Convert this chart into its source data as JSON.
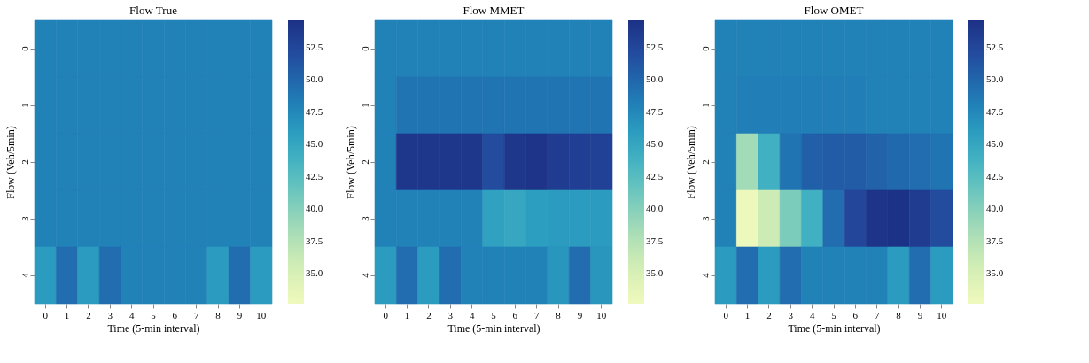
{
  "chart_data": [
    {
      "type": "heatmap",
      "title": "Flow True",
      "xlabel": "Time (5-min interval)",
      "ylabel": "Flow (Veh/5min)",
      "categories": [
        "0",
        "1",
        "2",
        "3",
        "4",
        "5",
        "6",
        "7",
        "8",
        "9",
        "10"
      ],
      "y_categories": [
        "0",
        "1",
        "2",
        "3",
        "4"
      ],
      "cells": [
        [
          48,
          48,
          48,
          48,
          48,
          48,
          48,
          48,
          48,
          48,
          48
        ],
        [
          48,
          48,
          48,
          48,
          48,
          48,
          48,
          48,
          48,
          48,
          48
        ],
        [
          48,
          48,
          48,
          48,
          48,
          48,
          48,
          48,
          48,
          48,
          48
        ],
        [
          48,
          48,
          48,
          48,
          48,
          48,
          48,
          48,
          48,
          48,
          48
        ],
        [
          46,
          49.5,
          46,
          49.5,
          48,
          48,
          48,
          48,
          46,
          49.5,
          46
        ]
      ],
      "clim": [
        32.7,
        54.6
      ],
      "cticks": [
        {
          "value": 35,
          "label": "35.0"
        },
        {
          "value": 37.5,
          "label": "37.5"
        },
        {
          "value": 40,
          "label": "40.0"
        },
        {
          "value": 42.5,
          "label": "42.5"
        },
        {
          "value": 45,
          "label": "45.0"
        },
        {
          "value": 47.5,
          "label": "47.5"
        },
        {
          "value": 50,
          "label": "50.0"
        },
        {
          "value": 52.5,
          "label": "52.5"
        }
      ]
    },
    {
      "type": "heatmap",
      "title": "Flow MMET",
      "xlabel": "Time (5-min interval)",
      "ylabel": "Flow (Veh/5min)",
      "categories": [
        "0",
        "1",
        "2",
        "3",
        "4",
        "5",
        "6",
        "7",
        "8",
        "9",
        "10"
      ],
      "y_categories": [
        "0",
        "1",
        "2",
        "3",
        "4"
      ],
      "cells": [
        [
          48,
          48,
          48,
          48,
          48,
          48,
          48,
          48,
          48,
          48,
          48
        ],
        [
          48,
          49,
          49,
          49,
          49,
          49,
          49,
          49,
          49,
          49,
          49
        ],
        [
          48,
          54,
          54,
          54,
          54,
          52,
          54,
          54.3,
          53.5,
          53.2,
          53
        ],
        [
          48,
          48,
          48,
          48,
          48,
          45.5,
          45,
          45.8,
          46,
          46,
          46
        ],
        [
          46,
          49.5,
          46,
          49.5,
          48,
          48,
          48,
          48,
          46.5,
          49.5,
          46.5
        ]
      ],
      "clim": [
        32.7,
        54.6
      ],
      "cticks": [
        {
          "value": 35,
          "label": "35.0"
        },
        {
          "value": 37.5,
          "label": "37.5"
        },
        {
          "value": 40,
          "label": "40.0"
        },
        {
          "value": 42.5,
          "label": "42.5"
        },
        {
          "value": 45,
          "label": "45.0"
        },
        {
          "value": 47.5,
          "label": "47.5"
        },
        {
          "value": 50,
          "label": "50.0"
        },
        {
          "value": 52.5,
          "label": "52.5"
        }
      ]
    },
    {
      "type": "heatmap",
      "title": "Flow OMET",
      "xlabel": "Time (5-min interval)",
      "ylabel": "Flow (Veh/5min)",
      "categories": [
        "0",
        "1",
        "2",
        "3",
        "4",
        "5",
        "6",
        "7",
        "8",
        "9",
        "10"
      ],
      "y_categories": [
        "0",
        "1",
        "2",
        "3",
        "4"
      ],
      "cells": [
        [
          48,
          48,
          48,
          48,
          48,
          48,
          48,
          48,
          48,
          48,
          48
        ],
        [
          48,
          48.3,
          48.3,
          48.3,
          48.3,
          48.3,
          48.3,
          48,
          48,
          48,
          48
        ],
        [
          48,
          38.5,
          44,
          49,
          50.5,
          50.8,
          50.8,
          50.3,
          49.8,
          49.5,
          49
        ],
        [
          48,
          33,
          36,
          40.5,
          44,
          49.5,
          52.5,
          54.3,
          54.5,
          53.5,
          52
        ],
        [
          46,
          49.5,
          46,
          49.5,
          48,
          48,
          48,
          48,
          46,
          49.5,
          46
        ]
      ],
      "clim": [
        32.7,
        54.6
      ],
      "cticks": [
        {
          "value": 35,
          "label": "35.0"
        },
        {
          "value": 37.5,
          "label": "37.5"
        },
        {
          "value": 40,
          "label": "40.0"
        },
        {
          "value": 42.5,
          "label": "42.5"
        },
        {
          "value": 45,
          "label": "45.0"
        },
        {
          "value": 47.5,
          "label": "47.5"
        },
        {
          "value": 50,
          "label": "50.0"
        },
        {
          "value": 52.5,
          "label": "52.5"
        }
      ]
    }
  ]
}
